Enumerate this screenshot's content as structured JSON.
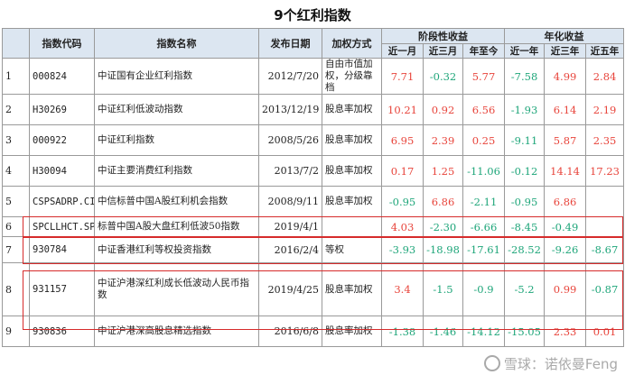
{
  "title": "9个红利指数",
  "headers": {
    "code": "指数代码",
    "name": "指数名称",
    "date": "发布日期",
    "method": "加权方式",
    "group_period": "阶段性收益",
    "group_annual": "年化收益",
    "m1": "近一月",
    "m3": "近三月",
    "ytd": "年至今",
    "y1": "近一年",
    "y3": "近三年",
    "y5": "近五年"
  },
  "rows": [
    {
      "idx": "1",
      "code": "000824",
      "name": "中证国有企业红利指数",
      "date": "2012/7/20",
      "method": "自由市值加权，分级靠档",
      "m1": "7.71",
      "m3": "-0.32",
      "ytd": "5.77",
      "y1": "-7.58",
      "y3": "4.99",
      "y5": "2.84"
    },
    {
      "idx": "2",
      "code": "H30269",
      "name": "中证红利低波动指数",
      "date": "2013/12/19",
      "method": "股息率加权",
      "m1": "10.21",
      "m3": "0.92",
      "ytd": "6.56",
      "y1": "-1.93",
      "y3": "6.14",
      "y5": "2.19"
    },
    {
      "idx": "3",
      "code": "000922",
      "name": "中证红利指数",
      "date": "2008/5/26",
      "method": "股息率加权",
      "m1": "6.95",
      "m3": "2.39",
      "ytd": "0.25",
      "y1": "-9.11",
      "y3": "5.87",
      "y5": "2.35"
    },
    {
      "idx": "4",
      "code": "H30094",
      "name": "中证主要消费红利指数",
      "date": "2013/7/2",
      "method": "股息率加权",
      "m1": "0.17",
      "m3": "1.25",
      "ytd": "-11.06",
      "y1": "-0.12",
      "y3": "14.14",
      "y5": "17.23"
    },
    {
      "idx": "5",
      "code": "CSPSADRP.CI",
      "name": "中信标普中国A股红利机会指数",
      "date": "2008/9/11",
      "method": "股息率加权",
      "m1": "-0.95",
      "m3": "6.86",
      "ytd": "-2.11",
      "y1": "-0.95",
      "y3": "6.86",
      "y5": ""
    },
    {
      "idx": "6",
      "code": "SPCLLHCT.SPI",
      "name": "标普中国A股大盘红利低波50指数",
      "date": "2019/4/1",
      "method": "",
      "m1": "4.03",
      "m3": "-2.30",
      "ytd": "-6.66",
      "y1": "-8.45",
      "y3": "-0.49",
      "y5": ""
    },
    {
      "idx": "7",
      "code": "930784",
      "name": "中证香港红利等权投资指数",
      "date": "2016/2/4",
      "method": "等权",
      "m1": "-3.93",
      "m3": "-18.98",
      "ytd": "-17.61",
      "y1": "-28.52",
      "y3": "-9.26",
      "y5": "-8.67"
    },
    {
      "idx": "8",
      "code": "931157",
      "name": "中证沪港深红利成长低波动人民币指数",
      "date": "2019/4/25",
      "method": "股息率加权",
      "m1": "3.4",
      "m3": "-1.5",
      "ytd": "-0.9",
      "y1": "-5.2",
      "y3": "0.99",
      "y5": "-0.87"
    },
    {
      "idx": "9",
      "code": "930836",
      "name": "中证沪港深高股息精选指数",
      "date": "2016/6/8",
      "method": "股息率加权",
      "m1": "-1.38",
      "m3": "-1.46",
      "ytd": "-14.12",
      "y1": "-15.05",
      "y3": "2.33",
      "y5": "0.01"
    }
  ],
  "colors": {
    "positive": "#e8453c",
    "negative": "#1fa67a",
    "highlight": "#d62b2b",
    "header_bg": "#dce6f1"
  },
  "watermark": "雪球：诺依曼Feng"
}
